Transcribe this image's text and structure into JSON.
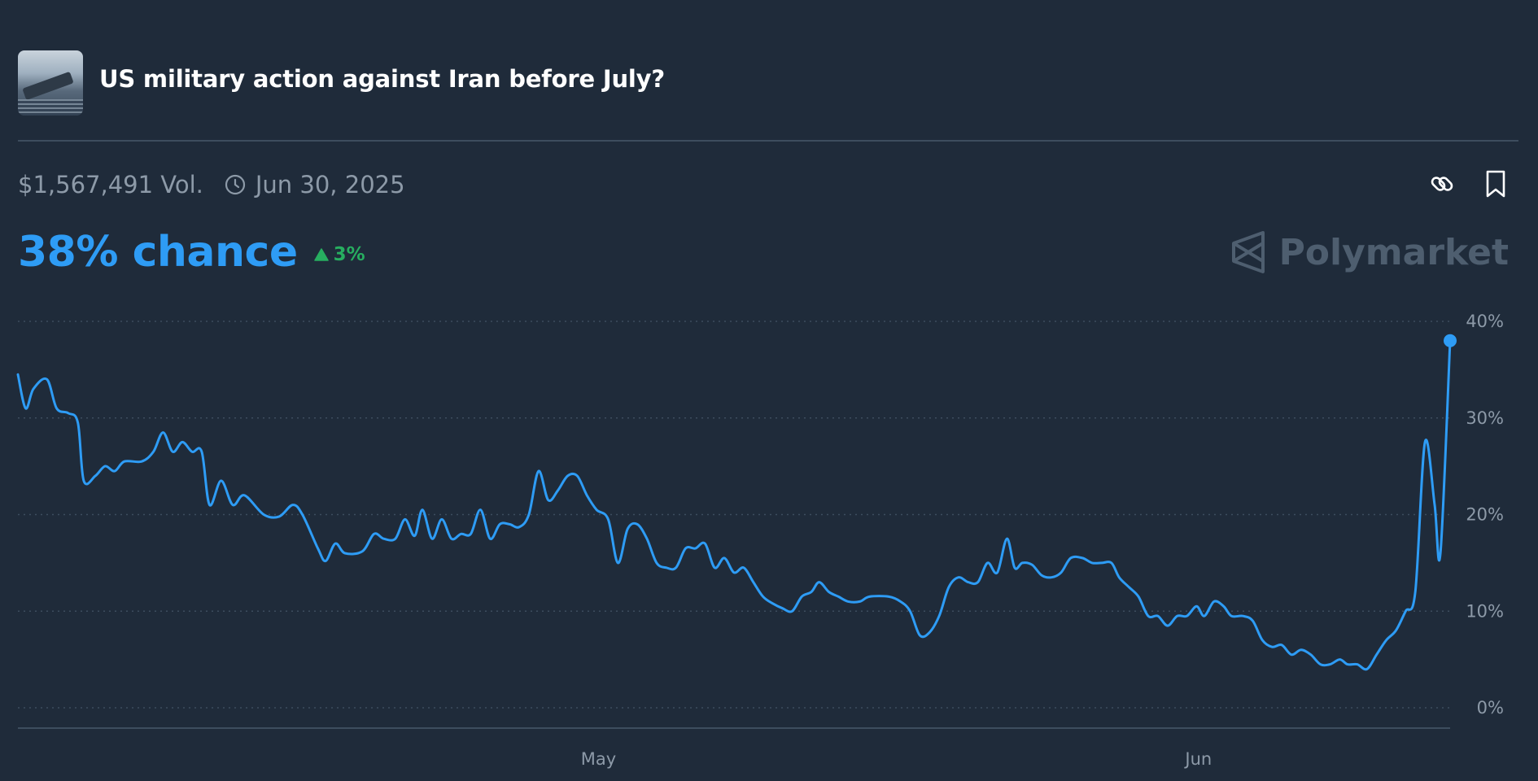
{
  "header": {
    "title": "US military action against Iran before July?",
    "thumbnail_icon": "aircraft-carrier-image"
  },
  "meta": {
    "volume": "$1,567,491 Vol.",
    "end_date": "Jun 30, 2025",
    "clock_icon": "clock-icon"
  },
  "actions": {
    "link_icon": "link-icon",
    "bookmark_icon": "bookmark-icon"
  },
  "chance": {
    "label": "38% chance",
    "delta": "3%",
    "delta_direction": "up"
  },
  "brand": {
    "name": "Polymarket"
  },
  "colors": {
    "background": "#1f2b3a",
    "line": "#2e9cf5",
    "positive": "#27ae60",
    "muted": "#8d9aa8"
  },
  "chart_data": {
    "type": "line",
    "y_ticks": [
      "0%",
      "10%",
      "20%",
      "30%",
      "40%"
    ],
    "x_ticks": [
      {
        "label": "May",
        "day": 30
      },
      {
        "label": "Jun",
        "day": 61
      }
    ],
    "ylim": [
      0,
      40
    ],
    "xlim": [
      0,
      74
    ],
    "grid": "horizontal-dotted",
    "series": [
      {
        "points": [
          [
            0.0,
            34.5
          ],
          [
            0.4,
            31
          ],
          [
            0.8,
            33
          ],
          [
            1.5,
            34
          ],
          [
            2.0,
            31
          ],
          [
            2.6,
            30.5
          ],
          [
            3.1,
            29.5
          ],
          [
            3.4,
            23.5
          ],
          [
            4.0,
            24
          ],
          [
            4.5,
            25
          ],
          [
            5.0,
            24.5
          ],
          [
            5.5,
            25.5
          ],
          [
            6.4,
            25.5
          ],
          [
            7.0,
            26.5
          ],
          [
            7.5,
            28.5
          ],
          [
            8.0,
            26.5
          ],
          [
            8.5,
            27.5
          ],
          [
            9.0,
            26.5
          ],
          [
            9.5,
            26.5
          ],
          [
            9.9,
            21
          ],
          [
            10.5,
            23.5
          ],
          [
            11.1,
            21
          ],
          [
            11.7,
            22
          ],
          [
            12.7,
            20
          ],
          [
            13.5,
            19.8
          ],
          [
            14.2,
            21
          ],
          [
            14.7,
            20
          ],
          [
            15.5,
            16.5
          ],
          [
            15.9,
            15.2
          ],
          [
            16.4,
            17
          ],
          [
            16.9,
            16
          ],
          [
            17.8,
            16.2
          ],
          [
            18.4,
            18
          ],
          [
            18.9,
            17.5
          ],
          [
            19.5,
            17.5
          ],
          [
            20.0,
            19.5
          ],
          [
            20.5,
            17.8
          ],
          [
            20.9,
            20.5
          ],
          [
            21.4,
            17.5
          ],
          [
            21.9,
            19.5
          ],
          [
            22.4,
            17.5
          ],
          [
            22.9,
            18
          ],
          [
            23.4,
            18
          ],
          [
            23.9,
            20.5
          ],
          [
            24.4,
            17.5
          ],
          [
            24.9,
            19
          ],
          [
            25.4,
            19
          ],
          [
            25.9,
            18.7
          ],
          [
            26.4,
            20
          ],
          [
            26.9,
            24.5
          ],
          [
            27.4,
            21.5
          ],
          [
            27.9,
            22.5
          ],
          [
            28.4,
            24
          ],
          [
            28.9,
            24
          ],
          [
            29.4,
            22
          ],
          [
            29.9,
            20.5
          ],
          [
            30.5,
            19.5
          ],
          [
            31.0,
            15
          ],
          [
            31.5,
            18.5
          ],
          [
            32.0,
            19
          ],
          [
            32.5,
            17.5
          ],
          [
            33.0,
            15
          ],
          [
            33.5,
            14.5
          ],
          [
            34.0,
            14.5
          ],
          [
            34.5,
            16.5
          ],
          [
            35.0,
            16.5
          ],
          [
            35.5,
            17
          ],
          [
            36.0,
            14.5
          ],
          [
            36.5,
            15.5
          ],
          [
            37.0,
            14
          ],
          [
            37.5,
            14.5
          ],
          [
            38.0,
            13
          ],
          [
            38.5,
            11.5
          ],
          [
            39.0,
            10.8
          ],
          [
            39.5,
            10.3
          ],
          [
            40.0,
            10
          ],
          [
            40.5,
            11.5
          ],
          [
            41.0,
            12
          ],
          [
            41.4,
            13
          ],
          [
            41.9,
            12
          ],
          [
            42.4,
            11.5
          ],
          [
            42.9,
            11
          ],
          [
            43.5,
            11
          ],
          [
            44.0,
            11.5
          ],
          [
            45.0,
            11.5
          ],
          [
            45.6,
            11
          ],
          [
            46.1,
            10
          ],
          [
            46.6,
            7.5
          ],
          [
            47.1,
            7.8
          ],
          [
            47.6,
            9.5
          ],
          [
            48.1,
            12.5
          ],
          [
            48.6,
            13.5
          ],
          [
            49.1,
            13
          ],
          [
            49.6,
            13
          ],
          [
            50.1,
            15
          ],
          [
            50.6,
            14
          ],
          [
            51.1,
            17.5
          ],
          [
            51.5,
            14.5
          ],
          [
            51.9,
            15
          ],
          [
            52.4,
            14.8
          ],
          [
            52.9,
            13.7
          ],
          [
            53.4,
            13.5
          ],
          [
            53.9,
            14
          ],
          [
            54.4,
            15.5
          ],
          [
            55.0,
            15.5
          ],
          [
            55.5,
            15
          ],
          [
            56.0,
            15
          ],
          [
            56.5,
            15
          ],
          [
            56.9,
            13.5
          ],
          [
            57.4,
            12.5
          ],
          [
            57.9,
            11.5
          ],
          [
            58.4,
            9.5
          ],
          [
            58.9,
            9.5
          ],
          [
            59.4,
            8.5
          ],
          [
            59.9,
            9.5
          ],
          [
            60.4,
            9.5
          ],
          [
            60.9,
            10.5
          ],
          [
            61.3,
            9.5
          ],
          [
            61.8,
            11
          ],
          [
            62.3,
            10.5
          ],
          [
            62.7,
            9.5
          ],
          [
            63.3,
            9.5
          ],
          [
            63.8,
            9
          ],
          [
            64.3,
            7
          ],
          [
            64.8,
            6.3
          ],
          [
            65.3,
            6.5
          ],
          [
            65.8,
            5.5
          ],
          [
            66.3,
            6
          ],
          [
            66.8,
            5.5
          ],
          [
            67.3,
            4.5
          ],
          [
            67.8,
            4.5
          ],
          [
            68.3,
            5
          ],
          [
            68.7,
            4.5
          ],
          [
            69.2,
            4.5
          ],
          [
            69.7,
            4
          ],
          [
            70.2,
            5.5
          ],
          [
            70.7,
            7
          ],
          [
            71.2,
            8
          ],
          [
            71.7,
            10
          ],
          [
            72.2,
            12
          ],
          [
            72.7,
            27.5
          ],
          [
            73.2,
            21
          ],
          [
            73.5,
            16
          ],
          [
            74.0,
            38
          ]
        ]
      }
    ]
  }
}
